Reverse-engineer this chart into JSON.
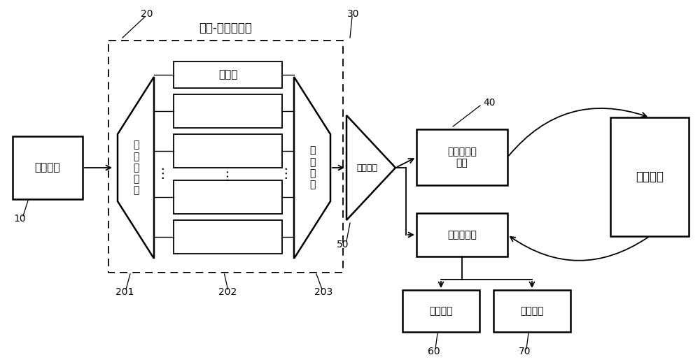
{
  "bg_color": "#ffffff",
  "line_color": "#000000",
  "title": "光谱-时间调制器",
  "label_10": "10",
  "label_20": "20",
  "label_30": "30",
  "label_40": "40",
  "label_50": "50",
  "label_60": "60",
  "label_70": "70",
  "label_201": "201",
  "label_202": "202",
  "label_203": "203",
  "text_broadband": "宽谱光源",
  "text_wdm": "波\n分\n复\n用\n器",
  "text_switches": "光开关",
  "text_demux": "解\n复\n用\n器",
  "text_amp": "光放大器",
  "text_spatial": "空间光发射\n单元",
  "text_detector": "光电探测器",
  "text_target": "探测目标",
  "text_process": "处理模块",
  "text_display": "显示模块"
}
